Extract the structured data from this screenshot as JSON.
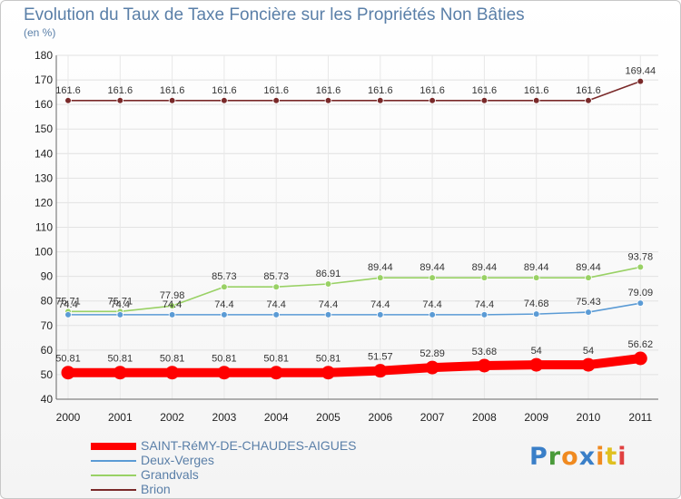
{
  "header": {
    "title": "Evolution du Taux de Taxe Foncière sur les Propriétés Non Bâties",
    "unit": "(en %)"
  },
  "logo": {
    "text": "Proxiti",
    "letter_colors": [
      "#3a7fc8",
      "#4a9a3a",
      "#f08a20",
      "#3a7fc8",
      "#f08a20",
      "#e0c020",
      "#e04040"
    ]
  },
  "chart_data": {
    "type": "line",
    "title": "Evolution du Taux de Taxe Foncière sur les Propriétés Non Bâties",
    "ylabel": "(en %)",
    "xlabel": "",
    "categories": [
      "2000",
      "2001",
      "2002",
      "2003",
      "2004",
      "2005",
      "2006",
      "2007",
      "2008",
      "2009",
      "2010",
      "2011"
    ],
    "ylim": [
      40,
      180
    ],
    "yticks": [
      "40",
      "50",
      "60",
      "70",
      "80",
      "90",
      "100",
      "110",
      "120",
      "130",
      "140",
      "150",
      "160",
      "170",
      "180"
    ],
    "grid": true,
    "legend_position": "bottom-left",
    "series": [
      {
        "name": "SAINT-RéMY-DE-CHAUDES-AIGUES",
        "color": "#ff0000",
        "values": [
          50.81,
          50.81,
          50.81,
          50.81,
          50.81,
          50.81,
          51.57,
          52.89,
          53.68,
          54,
          54,
          56.62
        ],
        "labels": [
          "50.81",
          "50.81",
          "50.81",
          "50.81",
          "50.81",
          "50.81",
          "51.57",
          "52.89",
          "53.68",
          "54",
          "54",
          "56.62"
        ]
      },
      {
        "name": "Deux-Verges",
        "color": "#5b9bd5",
        "values": [
          74.4,
          74.4,
          74.4,
          74.4,
          74.4,
          74.4,
          74.4,
          74.4,
          74.4,
          74.68,
          75.43,
          79.09
        ],
        "labels": [
          "74.4",
          "74.4",
          "74.4",
          "74.4",
          "74.4",
          "74.4",
          "74.4",
          "74.4",
          "74.4",
          "74.68",
          "75.43",
          "79.09"
        ]
      },
      {
        "name": "Grandvals",
        "color": "#99d165",
        "values": [
          75.71,
          75.71,
          77.98,
          85.73,
          85.73,
          86.91,
          89.44,
          89.44,
          89.44,
          89.44,
          89.44,
          93.78
        ],
        "labels": [
          "75.71",
          "75.71",
          "77.98",
          "85.73",
          "85.73",
          "86.91",
          "89.44",
          "89.44",
          "89.44",
          "89.44",
          "89.44",
          "93.78"
        ]
      },
      {
        "name": "Brion",
        "color": "#7a2a2a",
        "values": [
          161.6,
          161.6,
          161.6,
          161.6,
          161.6,
          161.6,
          161.6,
          161.6,
          161.6,
          161.6,
          161.6,
          169.44
        ],
        "labels": [
          "161.6",
          "161.6",
          "161.6",
          "161.6",
          "161.6",
          "161.6",
          "161.6",
          "161.6",
          "161.6",
          "161.6",
          "161.6",
          "169.44"
        ]
      }
    ]
  }
}
